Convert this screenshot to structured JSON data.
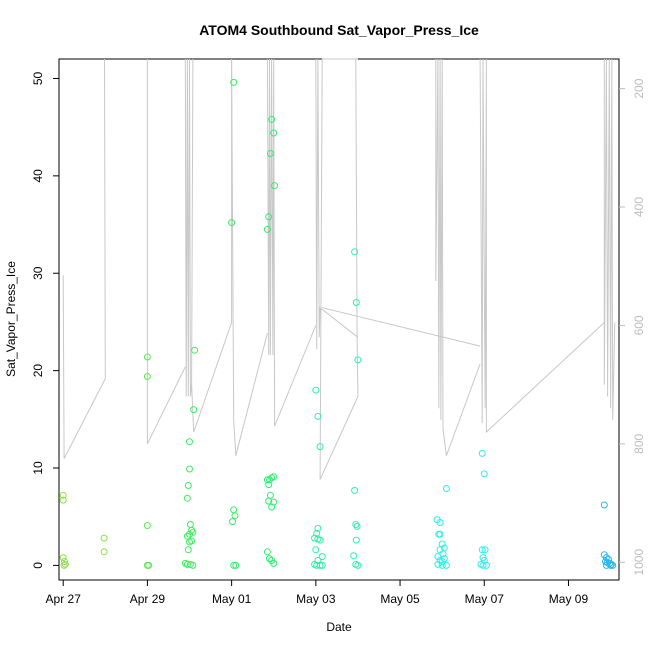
{
  "chart_data": {
    "type": "scatter",
    "title": "ATOM4 Southbound Sat_Vapor_Press_Ice",
    "xlabel": "Date",
    "ylabel": "Sat_Vapor_Press_Ice",
    "x_ticks": [
      "Apr 27",
      "Apr 29",
      "May 01",
      "May 03",
      "May 05",
      "May 07",
      "May 09"
    ],
    "y_ticks": [
      0,
      10,
      20,
      30,
      40,
      50
    ],
    "ylim": [
      -1.5,
      52
    ],
    "xlim": [
      -0.1,
      13.2
    ],
    "y2_ticks": [
      200,
      400,
      600,
      800,
      1000
    ],
    "y2lim": [
      1030,
      150
    ],
    "y2_color": "#bdbdbd",
    "points": [
      {
        "x": 0.0,
        "y": 7.2,
        "color": "#8fe04a"
      },
      {
        "x": 0.0,
        "y": 6.7,
        "color": "#8fe04a"
      },
      {
        "x": 0.0,
        "y": 0.8,
        "color": "#8fe04a"
      },
      {
        "x": 0.03,
        "y": 0.4,
        "color": "#8fe04a"
      },
      {
        "x": 0.05,
        "y": 0.1,
        "color": "#8fe04a"
      },
      {
        "x": 0.02,
        "y": 0.0,
        "color": "#8fe04a"
      },
      {
        "x": 0.97,
        "y": 2.8,
        "color": "#86e04a"
      },
      {
        "x": 0.97,
        "y": 1.4,
        "color": "#86e04a"
      },
      {
        "x": 2.0,
        "y": 21.4,
        "color": "#5ee854"
      },
      {
        "x": 2.0,
        "y": 19.4,
        "color": "#5ee854"
      },
      {
        "x": 2.0,
        "y": 4.1,
        "color": "#5ee854"
      },
      {
        "x": 2.0,
        "y": 0.0,
        "color": "#5ee854"
      },
      {
        "x": 2.03,
        "y": 0.0,
        "color": "#5ee854"
      },
      {
        "x": 2.9,
        "y": 0.2,
        "color": "#3ded5c"
      },
      {
        "x": 2.95,
        "y": 3.0,
        "color": "#3ded5c"
      },
      {
        "x": 2.95,
        "y": 0.1,
        "color": "#3ded5c"
      },
      {
        "x": 3.0,
        "y": 12.7,
        "color": "#3ded5c"
      },
      {
        "x": 3.0,
        "y": 9.9,
        "color": "#3ded5c"
      },
      {
        "x": 2.97,
        "y": 8.2,
        "color": "#3ded5c"
      },
      {
        "x": 2.95,
        "y": 6.9,
        "color": "#3ded5c"
      },
      {
        "x": 3.02,
        "y": 4.2,
        "color": "#3ded5c"
      },
      {
        "x": 3.05,
        "y": 3.6,
        "color": "#3ded5c"
      },
      {
        "x": 3.0,
        "y": 3.2,
        "color": "#3ded5c"
      },
      {
        "x": 3.08,
        "y": 3.4,
        "color": "#3ded5c"
      },
      {
        "x": 3.05,
        "y": 2.5,
        "color": "#3ded5c"
      },
      {
        "x": 3.0,
        "y": 2.4,
        "color": "#3ded5c"
      },
      {
        "x": 2.97,
        "y": 1.6,
        "color": "#3ded5c"
      },
      {
        "x": 3.02,
        "y": 0.1,
        "color": "#3ded5c"
      },
      {
        "x": 3.08,
        "y": 0.0,
        "color": "#3ded5c"
      },
      {
        "x": 3.1,
        "y": 16.0,
        "color": "#3ded5c"
      },
      {
        "x": 3.12,
        "y": 22.1,
        "color": "#3ded5c"
      },
      {
        "x": 4.0,
        "y": 35.2,
        "color": "#35ee66"
      },
      {
        "x": 4.05,
        "y": 49.6,
        "color": "#35ee66"
      },
      {
        "x": 4.05,
        "y": 5.7,
        "color": "#35ee66"
      },
      {
        "x": 4.08,
        "y": 5.1,
        "color": "#35ee66"
      },
      {
        "x": 4.02,
        "y": 4.5,
        "color": "#35ee66"
      },
      {
        "x": 4.05,
        "y": 0.0,
        "color": "#35ee66"
      },
      {
        "x": 4.1,
        "y": 0.0,
        "color": "#35ee66"
      },
      {
        "x": 4.85,
        "y": 34.5,
        "color": "#30ef70"
      },
      {
        "x": 4.88,
        "y": 35.8,
        "color": "#30ef70"
      },
      {
        "x": 4.95,
        "y": 45.8,
        "color": "#30ef70"
      },
      {
        "x": 4.92,
        "y": 42.3,
        "color": "#30ef70"
      },
      {
        "x": 5.0,
        "y": 44.4,
        "color": "#30ef70"
      },
      {
        "x": 5.02,
        "y": 39.0,
        "color": "#30ef70"
      },
      {
        "x": 4.85,
        "y": 8.8,
        "color": "#30ef70"
      },
      {
        "x": 4.9,
        "y": 8.8,
        "color": "#30ef70"
      },
      {
        "x": 4.95,
        "y": 9.0,
        "color": "#30ef70"
      },
      {
        "x": 5.0,
        "y": 9.1,
        "color": "#30ef70"
      },
      {
        "x": 4.88,
        "y": 8.3,
        "color": "#30ef70"
      },
      {
        "x": 4.92,
        "y": 7.2,
        "color": "#30ef70"
      },
      {
        "x": 4.88,
        "y": 6.6,
        "color": "#30ef70"
      },
      {
        "x": 4.95,
        "y": 6.0,
        "color": "#30ef70"
      },
      {
        "x": 5.0,
        "y": 6.5,
        "color": "#30ef70"
      },
      {
        "x": 4.85,
        "y": 1.4,
        "color": "#30ef70"
      },
      {
        "x": 4.9,
        "y": 0.7,
        "color": "#30ef70"
      },
      {
        "x": 4.95,
        "y": 0.5,
        "color": "#30ef70"
      },
      {
        "x": 5.0,
        "y": 0.2,
        "color": "#30ef70"
      },
      {
        "x": 6.0,
        "y": 18.0,
        "color": "#2ef0a8"
      },
      {
        "x": 6.05,
        "y": 15.3,
        "color": "#2ef0a8"
      },
      {
        "x": 6.1,
        "y": 12.2,
        "color": "#2ef0a8"
      },
      {
        "x": 6.05,
        "y": 3.8,
        "color": "#2ef0a8"
      },
      {
        "x": 6.02,
        "y": 3.3,
        "color": "#2ef0a8"
      },
      {
        "x": 5.97,
        "y": 2.8,
        "color": "#2ef0a8"
      },
      {
        "x": 6.05,
        "y": 2.7,
        "color": "#2ef0a8"
      },
      {
        "x": 6.1,
        "y": 2.6,
        "color": "#2ef0a8"
      },
      {
        "x": 6.0,
        "y": 1.6,
        "color": "#2ef0a8"
      },
      {
        "x": 6.15,
        "y": 0.9,
        "color": "#2ef0a8"
      },
      {
        "x": 6.05,
        "y": 0.5,
        "color": "#2ef0a8"
      },
      {
        "x": 5.97,
        "y": 0.1,
        "color": "#2ef0a8"
      },
      {
        "x": 6.02,
        "y": 0.0,
        "color": "#2ef0a8"
      },
      {
        "x": 6.1,
        "y": 0.0,
        "color": "#2ef0a8"
      },
      {
        "x": 6.15,
        "y": 0.0,
        "color": "#2ef0a8"
      },
      {
        "x": 6.92,
        "y": 32.2,
        "color": "#2ef0b0"
      },
      {
        "x": 6.96,
        "y": 27.0,
        "color": "#2ef0b0"
      },
      {
        "x": 7.0,
        "y": 21.1,
        "color": "#2ef0b0"
      },
      {
        "x": 6.92,
        "y": 7.7,
        "color": "#2ef0b0"
      },
      {
        "x": 6.95,
        "y": 4.2,
        "color": "#2ef0b0"
      },
      {
        "x": 6.98,
        "y": 4.0,
        "color": "#2ef0b0"
      },
      {
        "x": 6.9,
        "y": 1.0,
        "color": "#2ef0b0"
      },
      {
        "x": 6.95,
        "y": 0.1,
        "color": "#2ef0b0"
      },
      {
        "x": 7.0,
        "y": 0.0,
        "color": "#2ef0b0"
      },
      {
        "x": 6.96,
        "y": 2.6,
        "color": "#2ef0b0"
      },
      {
        "x": 8.88,
        "y": 4.7,
        "color": "#2ef0e8"
      },
      {
        "x": 8.95,
        "y": 4.4,
        "color": "#2ef0e8"
      },
      {
        "x": 9.1,
        "y": 7.9,
        "color": "#2ef0e8"
      },
      {
        "x": 8.92,
        "y": 3.2,
        "color": "#2ef0e8"
      },
      {
        "x": 8.95,
        "y": 3.2,
        "color": "#2ef0e8"
      },
      {
        "x": 9.0,
        "y": 2.2,
        "color": "#2ef0e8"
      },
      {
        "x": 9.05,
        "y": 1.8,
        "color": "#2ef0e8"
      },
      {
        "x": 8.95,
        "y": 1.6,
        "color": "#2ef0e8"
      },
      {
        "x": 9.02,
        "y": 1.2,
        "color": "#2ef0e8"
      },
      {
        "x": 8.9,
        "y": 0.9,
        "color": "#2ef0e8"
      },
      {
        "x": 8.95,
        "y": 0.5,
        "color": "#2ef0e8"
      },
      {
        "x": 9.0,
        "y": 0.4,
        "color": "#2ef0e8"
      },
      {
        "x": 9.05,
        "y": 0.7,
        "color": "#2ef0e8"
      },
      {
        "x": 8.9,
        "y": 0.1,
        "color": "#2ef0e8"
      },
      {
        "x": 9.0,
        "y": 0.0,
        "color": "#2ef0e8"
      },
      {
        "x": 9.1,
        "y": 0.0,
        "color": "#2ef0e8"
      },
      {
        "x": 9.95,
        "y": 11.5,
        "color": "#2eeef0"
      },
      {
        "x": 10.0,
        "y": 9.4,
        "color": "#2eeef0"
      },
      {
        "x": 9.95,
        "y": 1.6,
        "color": "#2eeef0"
      },
      {
        "x": 10.02,
        "y": 1.6,
        "color": "#2eeef0"
      },
      {
        "x": 9.97,
        "y": 0.8,
        "color": "#2eeef0"
      },
      {
        "x": 10.0,
        "y": 0.5,
        "color": "#2eeef0"
      },
      {
        "x": 9.92,
        "y": 0.1,
        "color": "#2eeef0"
      },
      {
        "x": 9.97,
        "y": 0.0,
        "color": "#2eeef0"
      },
      {
        "x": 10.05,
        "y": 0.0,
        "color": "#2eeef0"
      },
      {
        "x": 12.85,
        "y": 6.2,
        "color": "#2ab6ee"
      },
      {
        "x": 12.85,
        "y": 1.1,
        "color": "#2ab6ee"
      },
      {
        "x": 12.9,
        "y": 0.8,
        "color": "#2ab6ee"
      },
      {
        "x": 12.95,
        "y": 0.6,
        "color": "#2ab6ee"
      },
      {
        "x": 12.88,
        "y": 0.4,
        "color": "#2ab6ee"
      },
      {
        "x": 12.92,
        "y": 0.3,
        "color": "#2ab6ee"
      },
      {
        "x": 12.98,
        "y": 0.2,
        "color": "#2ab6ee"
      },
      {
        "x": 13.02,
        "y": 0.1,
        "color": "#2ab6ee"
      },
      {
        "x": 12.9,
        "y": 0.0,
        "color": "#2ab6ee"
      },
      {
        "x": 13.0,
        "y": 0.0,
        "color": "#2ab6ee"
      },
      {
        "x": 13.05,
        "y": 0.0,
        "color": "#2ab6ee"
      }
    ],
    "pressure_lines": [
      [
        [
          0.0,
          515
        ],
        [
          0.02,
          825
        ],
        [
          1.0,
          690
        ],
        [
          0.98,
          150
        ]
      ],
      [
        [
          2.0,
          150
        ],
        [
          2.0,
          800
        ],
        [
          2.9,
          670
        ]
      ],
      [
        [
          2.9,
          150
        ],
        [
          2.92,
          720
        ],
        [
          2.95,
          150
        ],
        [
          2.97,
          720
        ],
        [
          3.0,
          150
        ],
        [
          3.02,
          720
        ],
        [
          3.05,
          700
        ],
        [
          3.08,
          150
        ]
      ],
      [
        [
          3.05,
          700
        ],
        [
          3.1,
          780
        ],
        [
          4.0,
          595
        ],
        [
          4.0,
          150
        ]
      ],
      [
        [
          4.0,
          150
        ],
        [
          4.05,
          760
        ],
        [
          4.1,
          820
        ],
        [
          4.85,
          613
        ]
      ],
      [
        [
          4.85,
          150
        ],
        [
          4.88,
          650
        ],
        [
          4.9,
          150
        ],
        [
          4.92,
          650
        ],
        [
          4.95,
          150
        ],
        [
          4.98,
          650
        ],
        [
          5.0,
          150
        ],
        [
          5.02,
          770
        ],
        [
          6.0,
          600
        ]
      ],
      [
        [
          6.0,
          150
        ],
        [
          6.02,
          640
        ],
        [
          6.05,
          150
        ],
        [
          6.08,
          620
        ],
        [
          6.1,
          570
        ],
        [
          7.0,
          620
        ]
      ],
      [
        [
          6.95,
          150
        ],
        [
          6.98,
          620
        ],
        [
          7.0,
          720
        ],
        [
          6.1,
          860
        ],
        [
          6.15,
          150
        ],
        [
          7.0,
          150
        ]
      ],
      [
        [
          6.15,
          570
        ],
        [
          9.9,
          635
        ]
      ],
      [
        [
          8.85,
          150
        ],
        [
          8.85,
          525
        ],
        [
          8.9,
          150
        ],
        [
          8.92,
          740
        ],
        [
          8.95,
          150
        ],
        [
          8.97,
          760
        ],
        [
          9.0,
          150
        ],
        [
          9.02,
          775
        ],
        [
          9.1,
          820
        ],
        [
          9.9,
          665
        ]
      ],
      [
        [
          9.9,
          150
        ],
        [
          9.95,
          765
        ],
        [
          9.97,
          150
        ],
        [
          10.02,
          740
        ],
        [
          10.05,
          150
        ],
        [
          10.05,
          780
        ],
        [
          12.85,
          595
        ]
      ],
      [
        [
          12.85,
          150
        ],
        [
          12.85,
          700
        ],
        [
          12.9,
          150
        ],
        [
          12.93,
          720
        ],
        [
          12.97,
          150
        ],
        [
          13.0,
          740
        ],
        [
          13.03,
          150
        ],
        [
          13.05,
          760
        ],
        [
          13.1,
          595
        ]
      ]
    ]
  }
}
